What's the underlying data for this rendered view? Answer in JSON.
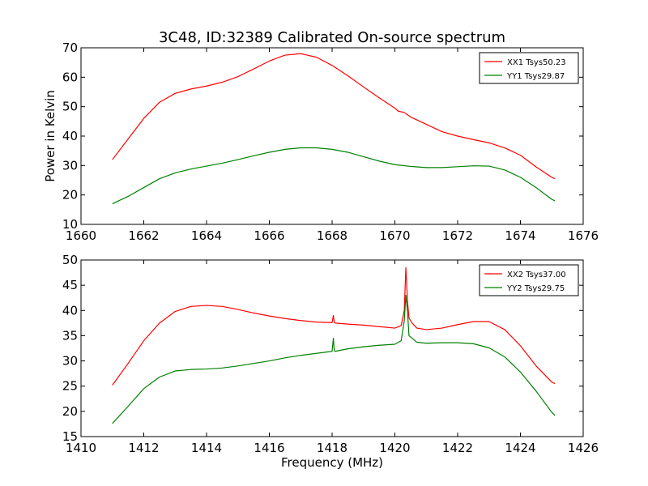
{
  "chart_data": [
    {
      "type": "line",
      "title": "3C48, ID:32389 Calibrated On-source spectrum",
      "xlabel": "",
      "ylabel": "Power in Kelvin",
      "xlim": [
        1660,
        1676
      ],
      "ylim": [
        10,
        70
      ],
      "xticks": [
        "1660",
        "1662",
        "1664",
        "1666",
        "1668",
        "1670",
        "1672",
        "1674",
        "1676"
      ],
      "yticks": [
        "10",
        "20",
        "30",
        "40",
        "50",
        "60",
        "70"
      ],
      "legend_position": "top-right",
      "grid": false,
      "series": [
        {
          "name": "XX1 Tsys50.23",
          "color": "#ff0000",
          "x": [
            1661,
            1661.5,
            1662,
            1662.5,
            1663,
            1663.5,
            1664,
            1664.5,
            1665,
            1665.5,
            1666,
            1666.5,
            1667,
            1667.5,
            1668,
            1668.5,
            1669,
            1669.5,
            1670,
            1670.1,
            1670.3,
            1670.5,
            1671,
            1671.5,
            1672,
            1672.5,
            1673,
            1673.5,
            1674,
            1674.5,
            1675,
            1675.1
          ],
          "y": [
            32,
            39,
            46,
            51.5,
            54.5,
            56,
            57,
            58.3,
            60.2,
            62.8,
            65.5,
            67.5,
            68,
            66.8,
            64,
            60.5,
            56.7,
            53,
            49.5,
            48.5,
            48,
            46.5,
            44,
            41.5,
            40,
            38.8,
            37.7,
            36,
            33.5,
            29.5,
            26,
            25.5
          ]
        },
        {
          "name": "YY1 Tsys29.87",
          "color": "#008000",
          "x": [
            1661,
            1661.5,
            1662,
            1662.5,
            1663,
            1663.5,
            1664,
            1664.5,
            1665,
            1665.5,
            1666,
            1666.5,
            1667,
            1667.5,
            1668,
            1668.5,
            1669,
            1669.5,
            1670,
            1670.5,
            1671,
            1671.5,
            1672,
            1672.5,
            1673,
            1673.5,
            1674,
            1674.5,
            1675,
            1675.1
          ],
          "y": [
            17,
            19.5,
            22.5,
            25.5,
            27.5,
            28.8,
            29.8,
            30.8,
            32,
            33.3,
            34.5,
            35.5,
            36,
            36,
            35.5,
            34.5,
            33,
            31.5,
            30.3,
            29.7,
            29.3,
            29.3,
            29.6,
            29.9,
            29.8,
            28.5,
            26,
            22.5,
            18.5,
            18
          ]
        }
      ]
    },
    {
      "type": "line",
      "title": "",
      "xlabel": "Frequency (MHz)",
      "ylabel": "",
      "xlim": [
        1410,
        1426
      ],
      "ylim": [
        15,
        50
      ],
      "xticks": [
        "1410",
        "1412",
        "1414",
        "1416",
        "1418",
        "1420",
        "1422",
        "1424",
        "1426"
      ],
      "yticks": [
        "15",
        "20",
        "25",
        "30",
        "35",
        "40",
        "45",
        "50"
      ],
      "legend_position": "top-right",
      "grid": false,
      "series": [
        {
          "name": "XX2 Tsys37.00",
          "color": "#ff0000",
          "x": [
            1411,
            1411.5,
            1412,
            1412.5,
            1413,
            1413.5,
            1414,
            1414.5,
            1415,
            1415.5,
            1416,
            1416.5,
            1417,
            1417.5,
            1418,
            1418.04,
            1418.07,
            1418.1,
            1418.5,
            1419,
            1419.5,
            1420,
            1420.2,
            1420.3,
            1420.35,
            1420.4,
            1420.45,
            1420.55,
            1420.7,
            1421,
            1421.5,
            1422,
            1422.5,
            1423,
            1423.5,
            1424,
            1424.5,
            1425,
            1425.1
          ],
          "y": [
            25.2,
            29.5,
            34,
            37.5,
            39.8,
            40.8,
            41,
            40.8,
            40.2,
            39.5,
            38.9,
            38.4,
            38,
            37.7,
            37.6,
            39,
            37.6,
            37.5,
            37.3,
            37.1,
            36.8,
            36.5,
            37,
            40,
            48.5,
            42,
            38.5,
            37.5,
            36.5,
            36.2,
            36.5,
            37.2,
            37.8,
            37.8,
            36.2,
            33,
            29,
            25.8,
            25.5
          ]
        },
        {
          "name": "YY2 Tsys29.75",
          "color": "#008000",
          "x": [
            1411,
            1411.5,
            1412,
            1412.5,
            1413,
            1413.5,
            1414,
            1414.5,
            1415,
            1415.5,
            1416,
            1416.5,
            1417,
            1417.5,
            1418,
            1418.04,
            1418.07,
            1418.1,
            1418.5,
            1419,
            1419.5,
            1420,
            1420.2,
            1420.3,
            1420.35,
            1420.4,
            1420.45,
            1420.55,
            1420.7,
            1421,
            1421.5,
            1422,
            1422.5,
            1423,
            1423.5,
            1424,
            1424.5,
            1425,
            1425.1
          ],
          "y": [
            17.6,
            21,
            24.5,
            26.8,
            28,
            28.3,
            28.4,
            28.6,
            29,
            29.5,
            30,
            30.6,
            31.1,
            31.5,
            31.9,
            34.5,
            32,
            31.9,
            32.4,
            32.8,
            33.1,
            33.3,
            34,
            38,
            43,
            40,
            35,
            34.5,
            33.7,
            33.5,
            33.6,
            33.6,
            33.4,
            32.6,
            30.8,
            27.8,
            24,
            19.8,
            19.2
          ]
        }
      ]
    }
  ]
}
